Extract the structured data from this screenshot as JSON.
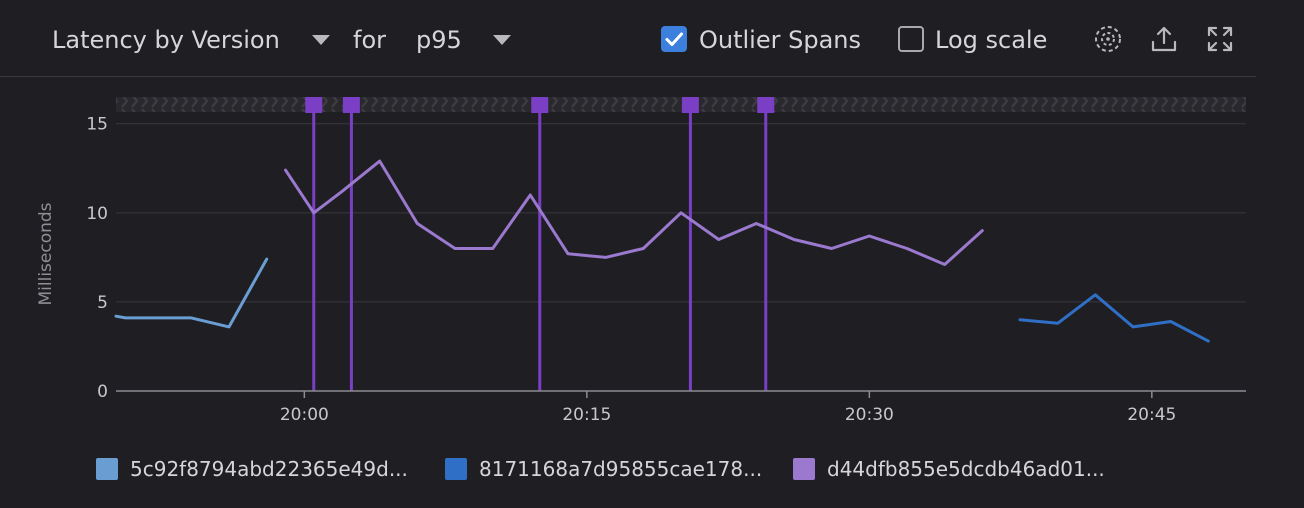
{
  "toolbar": {
    "metric": "Latency by Version",
    "for_label": "for",
    "percentile": "p95",
    "outlier_label": "Outlier Spans",
    "outlier_checked": true,
    "log_label": "Log scale",
    "log_checked": false,
    "icons": [
      "sampling-icon",
      "export-icon",
      "fullscreen-icon"
    ]
  },
  "colors": {
    "grid": "#3a393f",
    "axis": "#8c8c92",
    "outlier": "#7a3fc4"
  },
  "chart_data": {
    "type": "line",
    "title": "",
    "xlabel": "",
    "ylabel": "Milliseconds",
    "y_ticks": [
      0,
      5,
      10,
      15
    ],
    "ylim": [
      0,
      16.5
    ],
    "xlim": [
      "19:50",
      "20:50"
    ],
    "x_ticks": [
      "20:00",
      "20:15",
      "20:30",
      "20:45"
    ],
    "grid": true,
    "legend_position": "bottom",
    "series": [
      {
        "name": "5c92f8794abd22365e49d...",
        "color": "#6a9ed3",
        "points": [
          [
            "19:50",
            4.2
          ],
          [
            "19:50:30",
            4.1
          ],
          [
            "19:52",
            4.1
          ],
          [
            "19:54",
            4.1
          ],
          [
            "19:56",
            3.6
          ],
          [
            "19:58",
            7.4
          ]
        ]
      },
      {
        "name": "8171168a7d95855cae178...",
        "color": "#2f6fc6",
        "points": [
          [
            "20:38",
            4.0
          ],
          [
            "20:40",
            3.8
          ],
          [
            "20:42",
            5.4
          ],
          [
            "20:44",
            3.6
          ],
          [
            "20:46",
            3.9
          ],
          [
            "20:48",
            2.8
          ]
        ]
      },
      {
        "name": "d44dfb855e5dcdb46ad01...",
        "color": "#9a79cf",
        "points": [
          [
            "19:59",
            12.4
          ],
          [
            "20:00:30",
            10.0
          ],
          [
            "20:02",
            11.2
          ],
          [
            "20:04",
            12.9
          ],
          [
            "20:06",
            9.4
          ],
          [
            "20:08",
            8.0
          ],
          [
            "20:10",
            8.0
          ],
          [
            "20:12",
            11.0
          ],
          [
            "20:14",
            7.7
          ],
          [
            "20:16",
            7.5
          ],
          [
            "20:18",
            8.0
          ],
          [
            "20:20",
            10.0
          ],
          [
            "20:22",
            8.5
          ],
          [
            "20:24",
            9.4
          ],
          [
            "20:26",
            8.5
          ],
          [
            "20:28",
            8.0
          ],
          [
            "20:30",
            8.7
          ],
          [
            "20:32",
            8.0
          ],
          [
            "20:34",
            7.1
          ],
          [
            "20:36",
            9.0
          ]
        ]
      }
    ],
    "outlier_markers": [
      "20:00:30",
      "20:02:30",
      "20:12:30",
      "20:20:30",
      "20:24:30"
    ]
  }
}
